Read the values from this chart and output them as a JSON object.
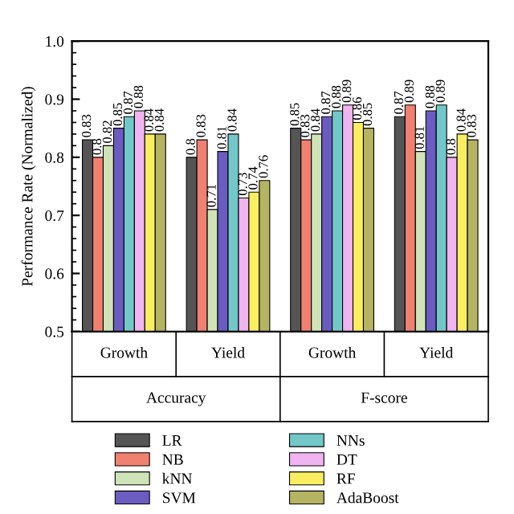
{
  "chart_data": {
    "type": "bar",
    "ylabel": "Performance Rate (Normalized)",
    "categories": [
      "Growth",
      "Yield",
      "Growth",
      "Yield"
    ],
    "annotations": [
      "Accuracy",
      "F-score"
    ],
    "ylim": [
      0.5,
      1.0
    ],
    "yticks": [
      0.5,
      0.6,
      0.7,
      0.8,
      0.9,
      {
        "value": 1,
        "label": "1.0"
      }
    ],
    "grid": false,
    "legend": "bottom",
    "data_labels": true,
    "series": [
      {
        "name": "LR",
        "color": "#555555",
        "values": [
          0.83,
          0.8,
          0.85,
          0.87
        ]
      },
      {
        "name": "NB",
        "color": "#f08070",
        "values": [
          0.8,
          0.83,
          0.83,
          0.89
        ]
      },
      {
        "name": "kNN",
        "color": "#cfe3b8",
        "values": [
          0.82,
          0.71,
          0.84,
          0.81
        ]
      },
      {
        "name": "SVM",
        "color": "#6a5cc0",
        "values": [
          0.85,
          0.81,
          0.87,
          0.88
        ]
      },
      {
        "name": "NNs",
        "color": "#72c8c8",
        "values": [
          0.87,
          0.84,
          0.88,
          0.89
        ]
      },
      {
        "name": "DT",
        "color": "#f0b4f0",
        "values": [
          0.88,
          0.73,
          0.89,
          0.8
        ]
      },
      {
        "name": "RF",
        "color": "#f8ee60",
        "values": [
          0.84,
          0.74,
          0.86,
          0.84
        ]
      },
      {
        "name": "AdaBoost",
        "color": "#b4b462",
        "values": [
          0.84,
          0.76,
          0.85,
          0.83
        ]
      }
    ]
  }
}
